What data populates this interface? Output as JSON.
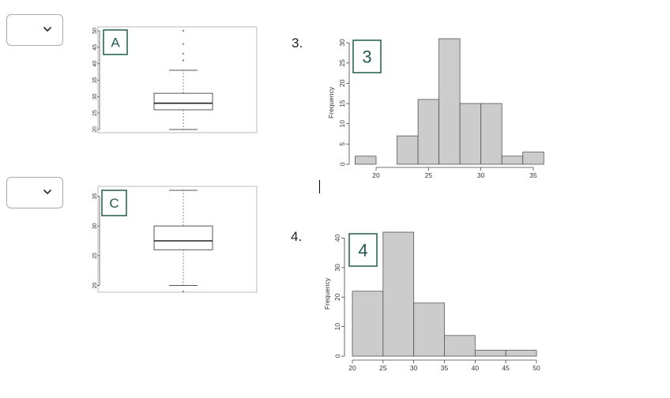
{
  "dropdowns": [
    {
      "id": "dropdown-1",
      "value": ""
    },
    {
      "id": "dropdown-2",
      "value": ""
    }
  ],
  "questions": [
    {
      "number": "3."
    },
    {
      "number": "4."
    }
  ],
  "colors": {
    "box_label": "#1f5c4d",
    "bar_fill": "#cccccc",
    "bar_stroke": "#555555",
    "frame": "#bbbbbb"
  },
  "chart_data": [
    {
      "type": "box",
      "label": "A",
      "ylim": [
        20,
        50
      ],
      "yticks": [
        20,
        25,
        30,
        35,
        40,
        45,
        50
      ],
      "box": {
        "whisker_low": 20,
        "q1": 26,
        "median": 28,
        "q3": 31,
        "whisker_high": 38
      },
      "outliers": [
        41,
        43,
        46,
        50
      ]
    },
    {
      "type": "box",
      "label": "C",
      "ylim": [
        19,
        36
      ],
      "yticks": [
        20,
        25,
        30,
        35
      ],
      "box": {
        "whisker_low": 20,
        "q1": 26,
        "median": 27.5,
        "q3": 30,
        "whisker_high": 36
      },
      "outliers": [
        19
      ]
    },
    {
      "type": "histogram",
      "label": "3",
      "ylabel": "Frequency",
      "bin_edges": [
        18,
        20,
        22,
        24,
        26,
        28,
        30,
        32,
        34,
        36
      ],
      "values": [
        2,
        0,
        7,
        16,
        31,
        15,
        15,
        2,
        3
      ],
      "xticks": [
        20,
        25,
        30,
        35
      ],
      "yticks": [
        0,
        5,
        10,
        15,
        20,
        25,
        30
      ],
      "ylim": [
        0,
        31
      ]
    },
    {
      "type": "histogram",
      "label": "4",
      "ylabel": "Frequency",
      "bin_edges": [
        20,
        25,
        30,
        35,
        40,
        45,
        50
      ],
      "values": [
        22,
        42,
        18,
        7,
        2,
        2
      ],
      "xticks": [
        20,
        25,
        30,
        35,
        40,
        45,
        50
      ],
      "yticks": [
        0,
        10,
        20,
        30,
        40
      ],
      "ylim": [
        0,
        42
      ]
    }
  ]
}
